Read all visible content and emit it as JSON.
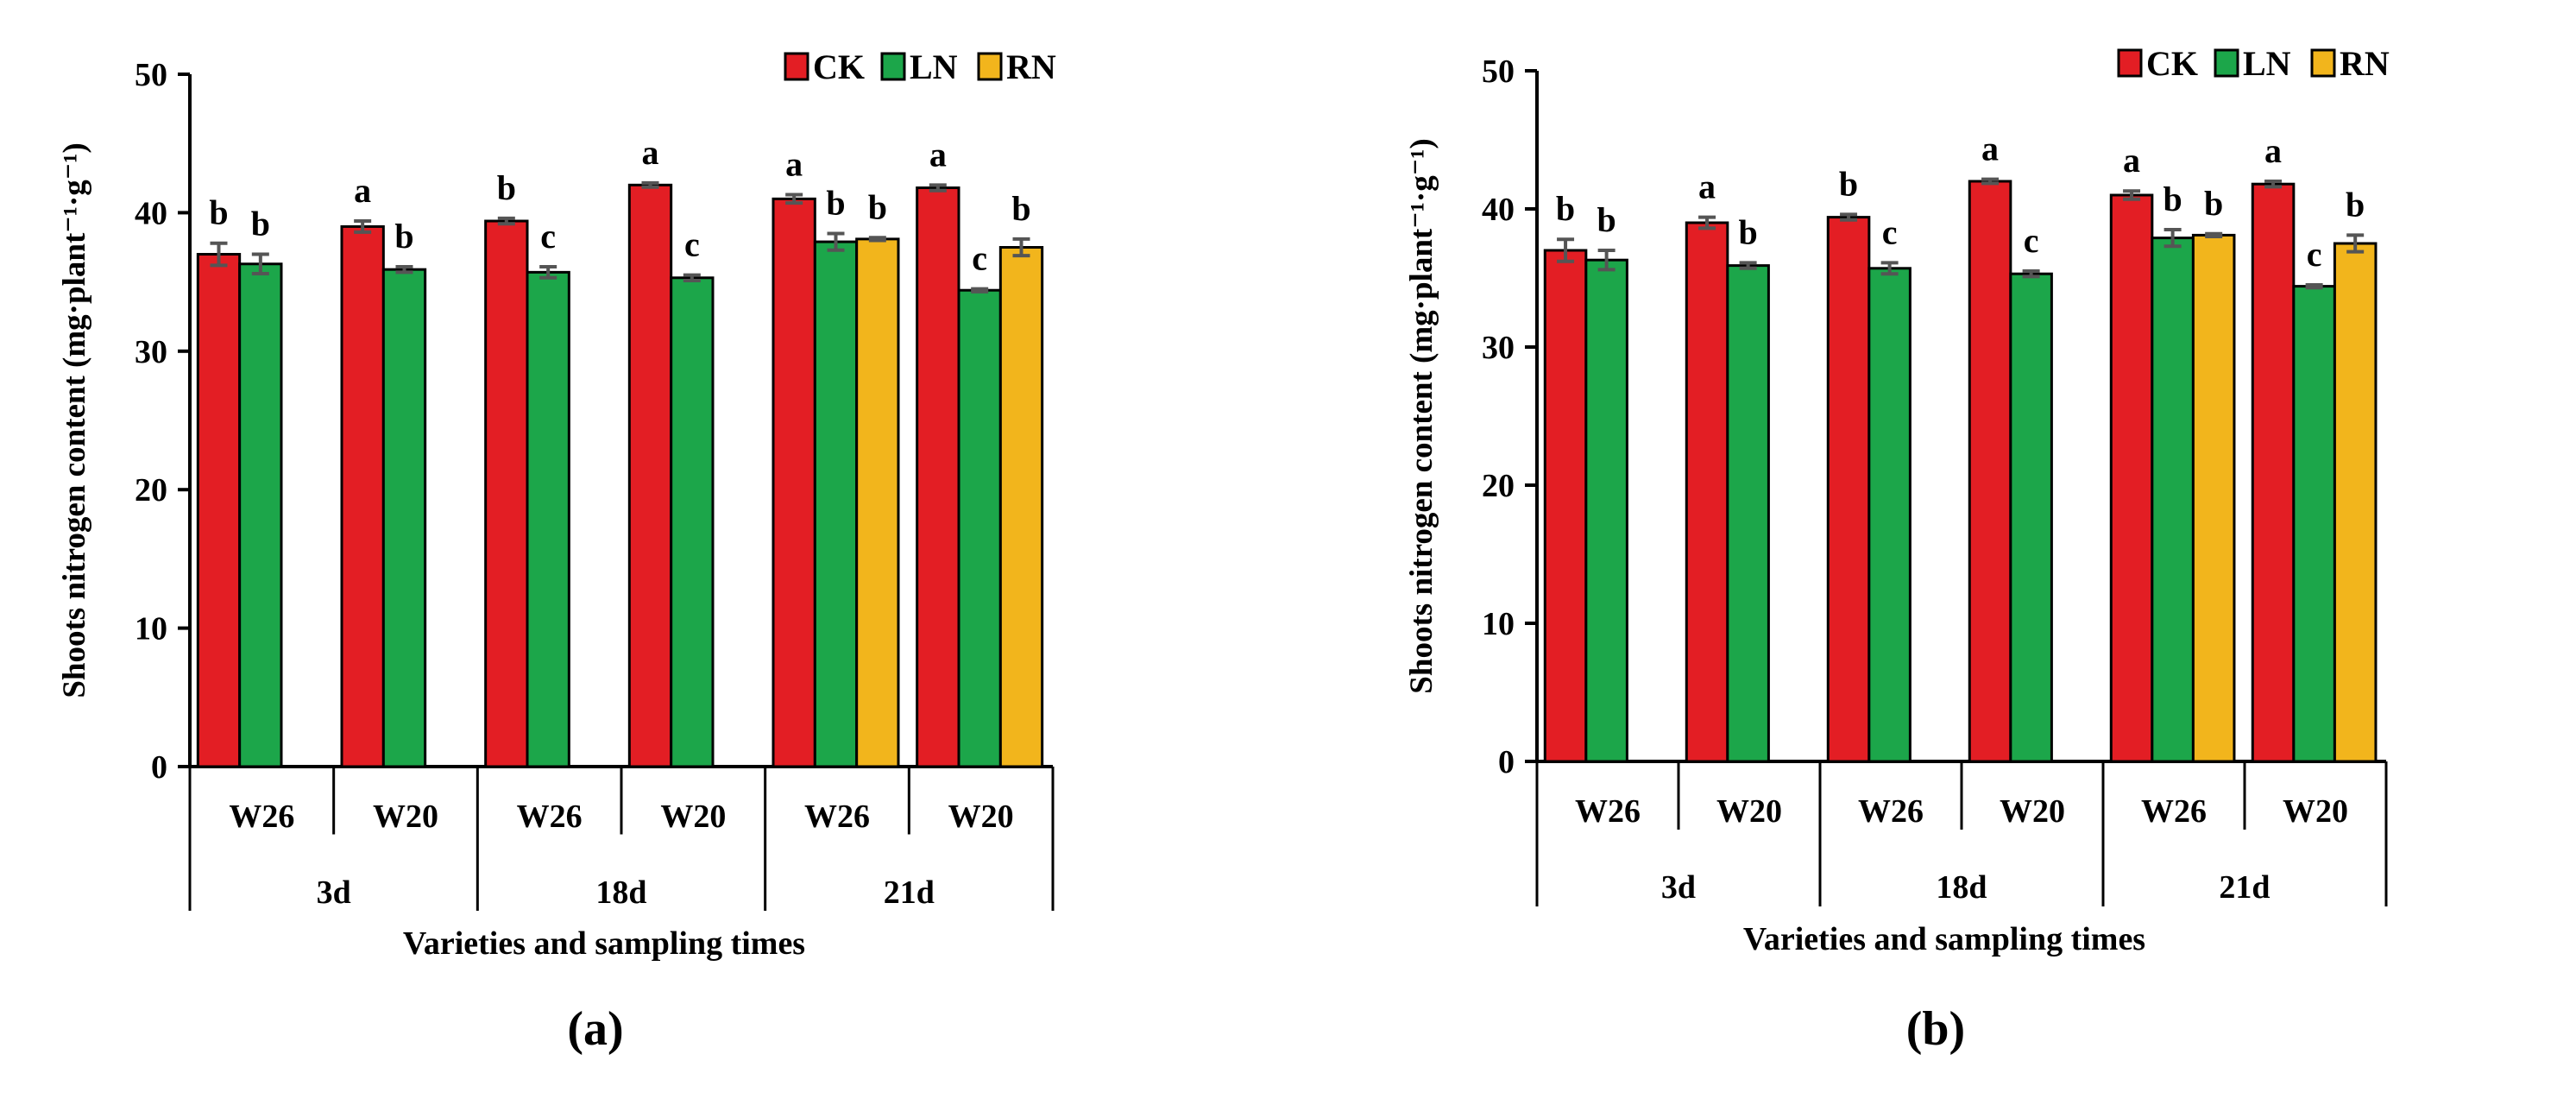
{
  "colors": {
    "CK": "#e31e24",
    "LN": "#1ca64a",
    "RN": "#f2b51c",
    "axis": "#000000",
    "error_bar": "#555555"
  },
  "chart_data": [
    {
      "panel_label": "(a)",
      "type": "bar",
      "ylabel": "Shoots nitrogen content (mg·plant⁻¹·g⁻¹)",
      "xlabel": "Varieties and  sampling times",
      "ylim": [
        0,
        50
      ],
      "yticks": [
        "0",
        "10",
        "20",
        "30",
        "40",
        "50"
      ],
      "legend": [
        "CK",
        "LN",
        "RN"
      ],
      "varieties": [
        "W26",
        "W20",
        "W26",
        "W20",
        "W26",
        "W20"
      ],
      "times": [
        "3d",
        "18d",
        "21d"
      ],
      "groups": [
        {
          "bars": [
            {
              "series": "CK",
              "value": 37.0,
              "err": 0.8,
              "sig": "b"
            },
            {
              "series": "LN",
              "value": 36.3,
              "err": 0.7,
              "sig": "b"
            }
          ]
        },
        {
          "bars": [
            {
              "series": "CK",
              "value": 39.0,
              "err": 0.4,
              "sig": "a"
            },
            {
              "series": "LN",
              "value": 35.9,
              "err": 0.2,
              "sig": "b"
            }
          ]
        },
        {
          "bars": [
            {
              "series": "CK",
              "value": 39.4,
              "err": 0.2,
              "sig": "b"
            },
            {
              "series": "LN",
              "value": 35.7,
              "err": 0.4,
              "sig": "c"
            }
          ]
        },
        {
          "bars": [
            {
              "series": "CK",
              "value": 42.0,
              "err": 0.15,
              "sig": "a"
            },
            {
              "series": "LN",
              "value": 35.3,
              "err": 0.2,
              "sig": "c"
            }
          ]
        },
        {
          "bars": [
            {
              "series": "CK",
              "value": 41.0,
              "err": 0.3,
              "sig": "a"
            },
            {
              "series": "LN",
              "value": 37.9,
              "err": 0.6,
              "sig": "b"
            },
            {
              "series": "RN",
              "value": 38.1,
              "err": 0.1,
              "sig": "b"
            }
          ]
        },
        {
          "bars": [
            {
              "series": "CK",
              "value": 41.8,
              "err": 0.2,
              "sig": "a"
            },
            {
              "series": "LN",
              "value": 34.4,
              "err": 0.1,
              "sig": "c"
            },
            {
              "series": "RN",
              "value": 37.5,
              "err": 0.6,
              "sig": "b"
            }
          ]
        }
      ]
    },
    {
      "panel_label": "(b)",
      "type": "bar",
      "ylabel": "Shoots nitrogen content (mg·plant⁻¹·g⁻¹)",
      "xlabel": "Varieties and  sampling times",
      "ylim": [
        0,
        50
      ],
      "yticks": [
        "0",
        "10",
        "20",
        "30",
        "40",
        "50"
      ],
      "legend": [
        "CK",
        "LN",
        "RN"
      ],
      "varieties": [
        "W26",
        "W20",
        "W26",
        "W20",
        "W26",
        "W20"
      ],
      "times": [
        "3d",
        "18d",
        "21d"
      ],
      "groups": [
        {
          "bars": [
            {
              "series": "CK",
              "value": 37.0,
              "err": 0.8,
              "sig": "b"
            },
            {
              "series": "LN",
              "value": 36.3,
              "err": 0.7,
              "sig": "b"
            }
          ]
        },
        {
          "bars": [
            {
              "series": "CK",
              "value": 39.0,
              "err": 0.4,
              "sig": "a"
            },
            {
              "series": "LN",
              "value": 35.9,
              "err": 0.2,
              "sig": "b"
            }
          ]
        },
        {
          "bars": [
            {
              "series": "CK",
              "value": 39.4,
              "err": 0.2,
              "sig": "b"
            },
            {
              "series": "LN",
              "value": 35.7,
              "err": 0.4,
              "sig": "c"
            }
          ]
        },
        {
          "bars": [
            {
              "series": "CK",
              "value": 42.0,
              "err": 0.15,
              "sig": "a"
            },
            {
              "series": "LN",
              "value": 35.3,
              "err": 0.2,
              "sig": "c"
            }
          ]
        },
        {
          "bars": [
            {
              "series": "CK",
              "value": 41.0,
              "err": 0.3,
              "sig": "a"
            },
            {
              "series": "LN",
              "value": 37.9,
              "err": 0.6,
              "sig": "b"
            },
            {
              "series": "RN",
              "value": 38.1,
              "err": 0.1,
              "sig": "b"
            }
          ]
        },
        {
          "bars": [
            {
              "series": "CK",
              "value": 41.8,
              "err": 0.2,
              "sig": "a"
            },
            {
              "series": "LN",
              "value": 34.4,
              "err": 0.1,
              "sig": "c"
            },
            {
              "series": "RN",
              "value": 37.5,
              "err": 0.6,
              "sig": "b"
            }
          ]
        }
      ]
    }
  ]
}
